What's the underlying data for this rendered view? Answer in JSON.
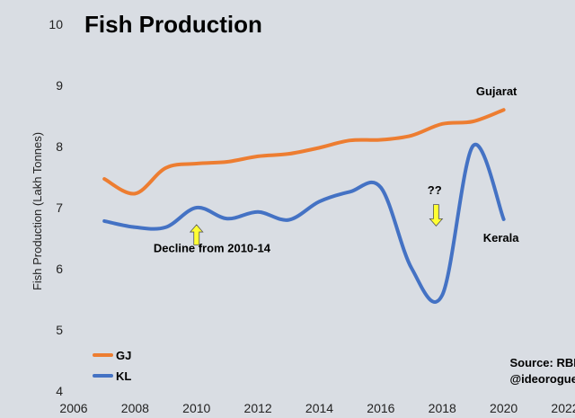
{
  "chart_data": {
    "type": "line",
    "title": "Fish Production",
    "xlabel": "",
    "ylabel": "Fish Production (Lakh Tonnes)",
    "xlim": [
      2006,
      2022
    ],
    "ylim": [
      4,
      10
    ],
    "xticks": [
      "2006",
      "2008",
      "2010",
      "2012",
      "2014",
      "2016",
      "2018",
      "2020",
      "2022"
    ],
    "yticks": [
      "4",
      "5",
      "6",
      "7",
      "8",
      "9",
      "10"
    ],
    "grid": false,
    "legend_position": "bottom-left",
    "series": [
      {
        "name": "GJ",
        "end_label": "Gujarat",
        "color": "#ed7d31",
        "x": [
          2007,
          2008,
          2009,
          2010,
          2011,
          2012,
          2013,
          2014,
          2015,
          2016,
          2017,
          2018,
          2019,
          2020
        ],
        "y": [
          7.47,
          7.23,
          7.65,
          7.72,
          7.75,
          7.84,
          7.88,
          7.98,
          8.1,
          8.11,
          8.18,
          8.37,
          8.41,
          8.6
        ]
      },
      {
        "name": "KL",
        "end_label": "Kerala",
        "color": "#4472c4",
        "x": [
          2007,
          2008,
          2009,
          2010,
          2011,
          2012,
          2013,
          2014,
          2015,
          2016,
          2017,
          2018,
          2019,
          2020
        ],
        "y": [
          6.78,
          6.68,
          6.68,
          7.0,
          6.82,
          6.93,
          6.8,
          7.1,
          7.26,
          7.33,
          6.01,
          5.57,
          8.01,
          6.81
        ]
      }
    ],
    "annotations": [
      {
        "text": "Decline from 2010-14",
        "x": 2008.6,
        "y": 6.27
      },
      {
        "text": "??",
        "x": 2017.75,
        "y": 7.22
      },
      {
        "text": "Source: RBI",
        "x": 2020.2,
        "y": 4.4
      },
      {
        "text": "@ideorogue",
        "x": 2020.2,
        "y": 4.13
      }
    ],
    "arrows": [
      {
        "color": "#ffff33",
        "direction": "up",
        "x": 2010,
        "y_from": 6.39,
        "y_to": 6.72
      },
      {
        "color": "#ffff33",
        "direction": "down",
        "x": 2017.8,
        "y_from": 7.05,
        "y_to": 6.7
      }
    ]
  }
}
